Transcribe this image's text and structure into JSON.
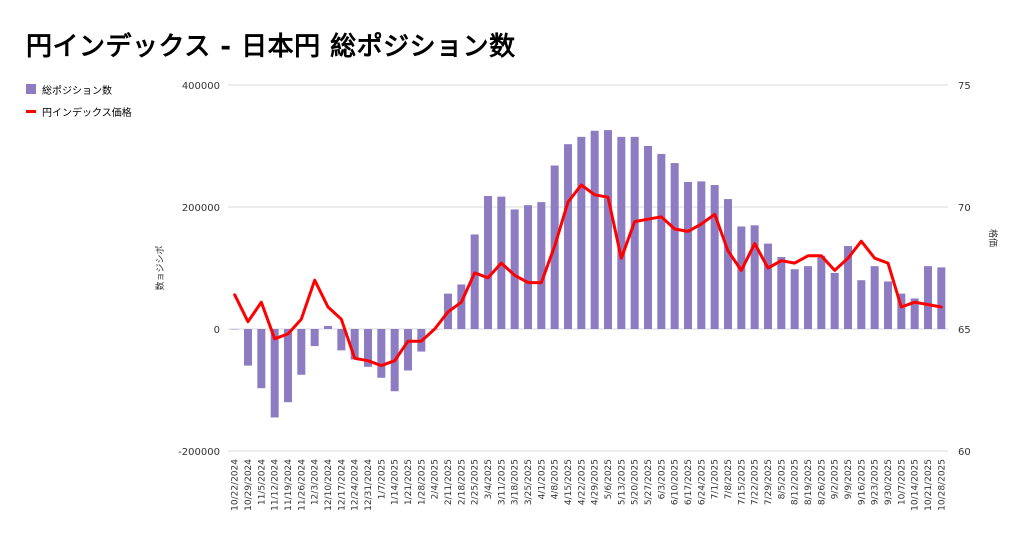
{
  "page": {
    "title": "円インデックス - 日本円 総ポジション数"
  },
  "colors": {
    "bar": "#8e7cc3",
    "line": "#ff0000",
    "grid": "#d9d9d9",
    "axis": "#333333"
  },
  "chart_data": {
    "type": "bar",
    "title": "円インデックス - 日本円 総ポジション数",
    "ylabel_left": "数ョジシポ",
    "ylabel_right": "格価",
    "ylim_left": [
      -200000,
      400000
    ],
    "ylim_right": [
      60,
      75
    ],
    "left_ticks": [
      {
        "value": 400000,
        "label": "400000"
      },
      {
        "value": 200000,
        "label": "200000"
      },
      {
        "value": 0,
        "label": "0"
      },
      {
        "value": -200000,
        "label": "-200000"
      }
    ],
    "right_ticks": [
      {
        "value": 75,
        "label": "75"
      },
      {
        "value": 70,
        "label": "70"
      },
      {
        "value": 65,
        "label": "65"
      },
      {
        "value": 60,
        "label": "60"
      }
    ],
    "grid": true,
    "legend_position": "left",
    "categories": [
      "10/22/2024",
      "10/29/2024",
      "11/5/2024",
      "11/12/2024",
      "11/19/2024",
      "11/26/2024",
      "12/3/2024",
      "12/10/2024",
      "12/17/2024",
      "12/24/2024",
      "12/31/2024",
      "1/7/2025",
      "1/14/2025",
      "1/21/2025",
      "1/28/2025",
      "2/4/2025",
      "2/11/2025",
      "2/18/2025",
      "2/25/2025",
      "3/4/2025",
      "3/11/2025",
      "3/18/2025",
      "3/25/2025",
      "4/1/2025",
      "4/8/2025",
      "4/15/2025",
      "4/22/2025",
      "4/29/2025",
      "5/6/2025",
      "5/13/2025",
      "5/20/2025",
      "5/27/2025",
      "6/3/2025",
      "6/10/2025",
      "6/17/2025",
      "6/24/2025",
      "7/1/2025",
      "7/8/2025",
      "7/15/2025",
      "7/22/2025",
      "7/29/2025",
      "8/5/2025",
      "8/12/2025",
      "8/19/2025",
      "8/26/2025",
      "9/2/2025",
      "9/9/2025",
      "9/16/2025",
      "9/23/2025",
      "9/30/2025",
      "10/7/2025",
      "10/14/2025",
      "10/21/2025",
      "10/28/2025"
    ],
    "series": [
      {
        "name": "総ポジション数",
        "type": "bar",
        "axis": "left",
        "values": [
          0,
          -60000,
          -97000,
          -145000,
          -120000,
          -75000,
          -28000,
          5000,
          -35000,
          -50000,
          -62000,
          -80000,
          -102000,
          -68000,
          -37000,
          0,
          58000,
          73000,
          155000,
          218000,
          217000,
          196000,
          203000,
          208000,
          268000,
          303000,
          315000,
          325000,
          326000,
          315000,
          315000,
          300000,
          287000,
          272000,
          241000,
          242000,
          236000,
          213000,
          168000,
          170000,
          140000,
          118000,
          98000,
          103000,
          120000,
          92000,
          136000,
          80000,
          103000,
          78000,
          58000,
          50000,
          103000,
          101000
        ]
      },
      {
        "name": "円インデックス価格",
        "type": "line",
        "axis": "right",
        "values": [
          66.4,
          65.3,
          66.1,
          64.6,
          64.8,
          65.4,
          67.0,
          65.9,
          65.4,
          63.8,
          63.7,
          63.5,
          63.7,
          64.5,
          64.5,
          65.0,
          65.7,
          66.1,
          67.3,
          67.1,
          67.7,
          67.2,
          66.9,
          66.9,
          68.4,
          70.2,
          70.9,
          70.5,
          70.4,
          67.9,
          69.4,
          69.5,
          69.6,
          69.1,
          69.0,
          69.3,
          69.7,
          68.2,
          67.4,
          68.5,
          67.5,
          67.8,
          67.7,
          68.0,
          68.0,
          67.4,
          67.9,
          68.6,
          67.9,
          67.7,
          65.9,
          66.1,
          66.0,
          65.9
        ]
      }
    ]
  }
}
